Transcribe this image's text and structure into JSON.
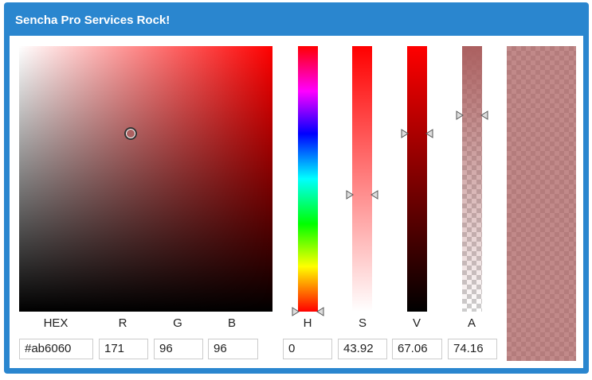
{
  "header": {
    "title": "Sencha Pro Services Rock!"
  },
  "fields": [
    {
      "label": "HEX",
      "value": "#ab6060"
    },
    {
      "label": "R",
      "value": 171
    },
    {
      "label": "G",
      "value": 96
    },
    {
      "label": "B",
      "value": 96
    },
    {
      "label": "H",
      "value": 0
    },
    {
      "label": "S",
      "value": 43.92
    },
    {
      "label": "V",
      "value": 67.06
    },
    {
      "label": "A",
      "value": 74.16
    }
  ]
}
